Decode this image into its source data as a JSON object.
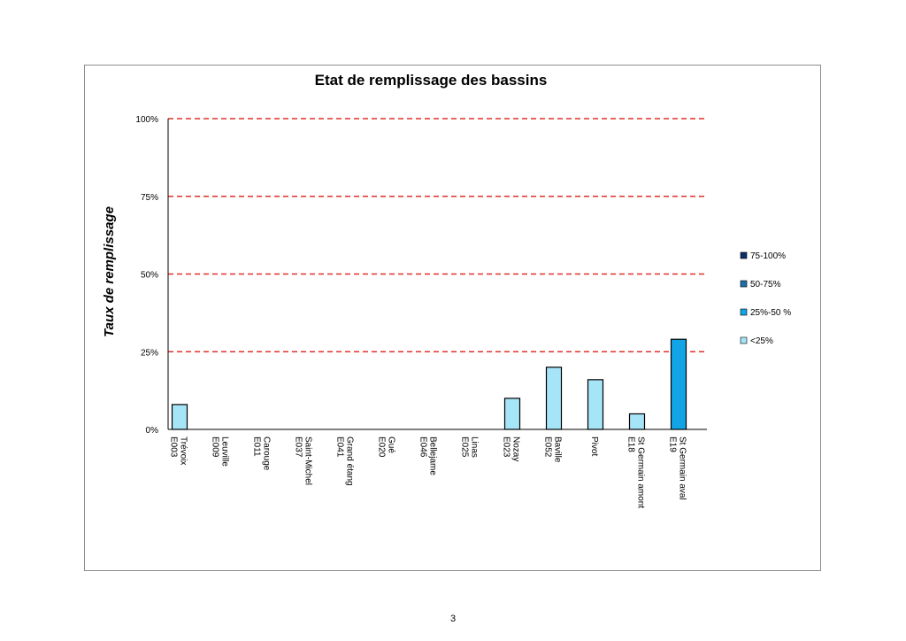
{
  "page": {
    "number": "3"
  },
  "chart_data": {
    "type": "bar",
    "title": "Etat de remplissage des bassins",
    "xlabel": "",
    "ylabel": "Taux de remplissage",
    "ylim": [
      0,
      100
    ],
    "yticks": [
      0,
      25,
      50,
      75,
      100
    ],
    "ytick_labels": [
      "0%",
      "25%",
      "50%",
      "75%",
      "100%"
    ],
    "reference_lines": [
      25,
      50,
      75,
      100
    ],
    "reference_line_color": "#e0302a",
    "categories": [
      [
        "Trévoix",
        "E003"
      ],
      [
        "Leuville",
        "E009"
      ],
      [
        "Carouge",
        "E011"
      ],
      [
        "Saint-Michel",
        "E037"
      ],
      [
        "Grand étang",
        "E041"
      ],
      [
        "Gué",
        "E020"
      ],
      [
        "Bellejame",
        "E046"
      ],
      [
        "Linas",
        "E025"
      ],
      [
        "Nozay",
        "E023"
      ],
      [
        "Baville",
        "E052"
      ],
      [
        "Pivot"
      ],
      [
        "St Germain amont",
        "E18"
      ],
      [
        "St Germain aval",
        "E19"
      ]
    ],
    "values": [
      8,
      0,
      0,
      0,
      0,
      0,
      0,
      0,
      10,
      20,
      16,
      5,
      29
    ],
    "legend": [
      {
        "label": "75-100%",
        "color": "#0d2d6b",
        "min": 75,
        "max": 100
      },
      {
        "label": "50-75%",
        "color": "#1f6fa8",
        "min": 50,
        "max": 75
      },
      {
        "label": "25%-50 %",
        "color": "#13a4e8",
        "min": 25,
        "max": 50
      },
      {
        "label": "<25%",
        "color": "#a6e4f8",
        "min": 0,
        "max": 25
      }
    ],
    "legend_position": "right",
    "grid": false
  }
}
